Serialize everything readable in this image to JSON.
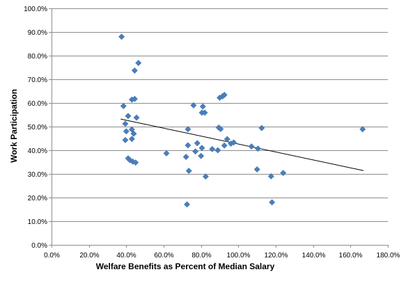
{
  "chart_data": {
    "type": "scatter",
    "xlabel": "Welfare Benefits as Percent of Median Salary",
    "ylabel": "Work Participation",
    "xlim": [
      0,
      180
    ],
    "ylim": [
      0,
      100
    ],
    "x_ticks": [
      0,
      20,
      40,
      60,
      80,
      100,
      120,
      140,
      160,
      180
    ],
    "y_ticks": [
      0,
      10,
      20,
      30,
      40,
      50,
      60,
      70,
      80,
      90,
      100
    ],
    "x_tick_labels": [
      "0.0%",
      "20.0%",
      "40.0%",
      "60.0%",
      "80.0%",
      "100.0%",
      "120.0%",
      "140.0%",
      "160.0%",
      "180.0%"
    ],
    "y_tick_labels": [
      "0.0%",
      "10.0%",
      "20.0%",
      "30.0%",
      "40.0%",
      "50.0%",
      "60.0%",
      "70.0%",
      "80.0%",
      "90.0%",
      "100.0%"
    ],
    "grid": "horizontal",
    "marker_color": "#4a7ebb",
    "trendline_color": "#000000",
    "series": [
      {
        "points": [
          [
            37.5,
            88.0
          ],
          [
            38.5,
            58.7
          ],
          [
            39.5,
            51.2
          ],
          [
            39.5,
            44.3
          ],
          [
            40.0,
            48.0
          ],
          [
            41.0,
            54.5
          ],
          [
            41.0,
            36.6
          ],
          [
            42.0,
            35.8
          ],
          [
            43.0,
            48.8
          ],
          [
            43.0,
            44.8
          ],
          [
            43.0,
            61.4
          ],
          [
            43.5,
            35.2
          ],
          [
            44.0,
            47.0
          ],
          [
            44.5,
            61.7
          ],
          [
            44.5,
            73.7
          ],
          [
            45.0,
            34.8
          ],
          [
            45.5,
            53.8
          ],
          [
            46.5,
            76.9
          ],
          [
            61.5,
            38.7
          ],
          [
            72.0,
            37.2
          ],
          [
            72.5,
            17.1
          ],
          [
            73.0,
            48.9
          ],
          [
            73.0,
            42.1
          ],
          [
            73.5,
            31.3
          ],
          [
            76.0,
            59.0
          ],
          [
            77.0,
            39.5
          ],
          [
            78.0,
            43.0
          ],
          [
            80.0,
            37.6
          ],
          [
            80.5,
            55.9
          ],
          [
            80.5,
            41.0
          ],
          [
            81.0,
            58.5
          ],
          [
            82.0,
            55.9
          ],
          [
            82.5,
            28.9
          ],
          [
            86.0,
            40.5
          ],
          [
            89.0,
            40.0
          ],
          [
            89.5,
            49.6
          ],
          [
            90.0,
            62.2
          ],
          [
            90.5,
            49.0
          ],
          [
            91.5,
            62.8
          ],
          [
            92.5,
            42.0
          ],
          [
            92.5,
            63.4
          ],
          [
            94.0,
            44.7
          ],
          [
            96.0,
            42.8
          ],
          [
            97.5,
            43.3
          ],
          [
            107.0,
            41.6
          ],
          [
            110.0,
            31.9
          ],
          [
            110.5,
            40.7
          ],
          [
            112.5,
            49.4
          ],
          [
            117.5,
            29.0
          ],
          [
            118.0,
            18.0
          ],
          [
            124.0,
            30.4
          ],
          [
            166.5,
            48.9
          ]
        ]
      }
    ],
    "trendline": {
      "x": [
        37.0,
        167.0
      ],
      "y": [
        53.2,
        31.4
      ]
    }
  }
}
